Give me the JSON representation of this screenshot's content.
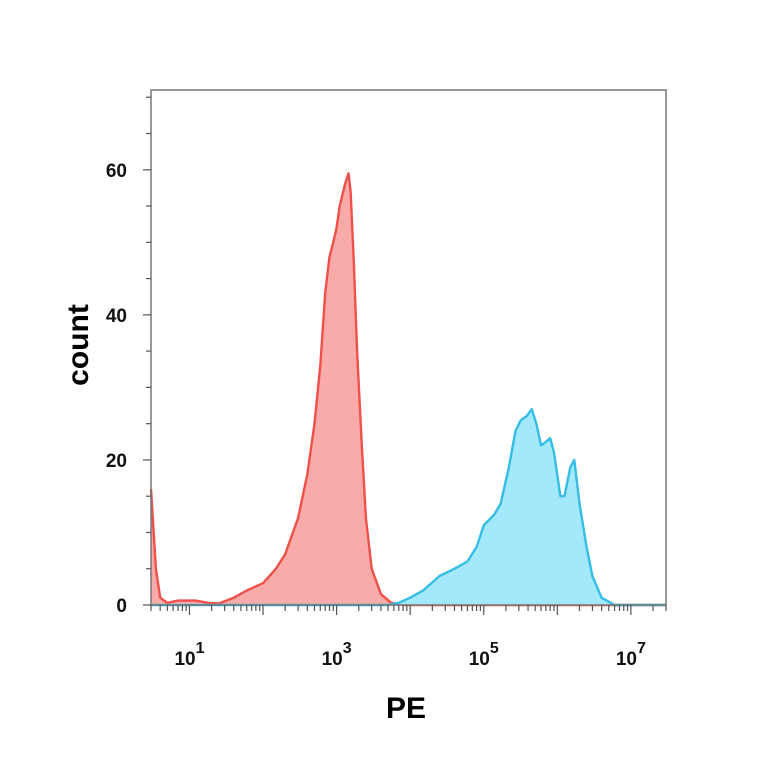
{
  "chart_data": {
    "type": "area",
    "title": "",
    "xlabel": "PE",
    "ylabel": "count",
    "x_scale": "log",
    "xlim": [
      3,
      30000000
    ],
    "ylim": [
      0,
      71
    ],
    "grid": false,
    "legend": "none",
    "x_ticks": [
      {
        "value": 10,
        "base": "10",
        "exp": "1"
      },
      {
        "value": 1000,
        "base": "10",
        "exp": "3"
      },
      {
        "value": 100000,
        "base": "10",
        "exp": "5"
      },
      {
        "value": 10000000,
        "base": "10",
        "exp": "7"
      }
    ],
    "y_ticks": [
      {
        "value": 0,
        "label": "0"
      },
      {
        "value": 20,
        "label": "20"
      },
      {
        "value": 40,
        "label": "40"
      },
      {
        "value": 60,
        "label": "60"
      }
    ],
    "series": [
      {
        "color": "#f0504a",
        "fill": "#f9a7a5",
        "points": [
          [
            3,
            16
          ],
          [
            3.5,
            5
          ],
          [
            4,
            1
          ],
          [
            5,
            0.3
          ],
          [
            7,
            0.6
          ],
          [
            12,
            0.6
          ],
          [
            18,
            0.3
          ],
          [
            25,
            0.2
          ],
          [
            40,
            1
          ],
          [
            60,
            2
          ],
          [
            100,
            3
          ],
          [
            150,
            5
          ],
          [
            200,
            7
          ],
          [
            300,
            12
          ],
          [
            400,
            18
          ],
          [
            500,
            25
          ],
          [
            600,
            33
          ],
          [
            700,
            43
          ],
          [
            800,
            48
          ],
          [
            900,
            50
          ],
          [
            1000,
            52
          ],
          [
            1100,
            55
          ],
          [
            1300,
            58
          ],
          [
            1450,
            59.5
          ],
          [
            1550,
            57
          ],
          [
            1700,
            48
          ],
          [
            1900,
            35
          ],
          [
            2200,
            22
          ],
          [
            2500,
            12
          ],
          [
            3000,
            5
          ],
          [
            4000,
            1.5
          ],
          [
            5500,
            0.3
          ],
          [
            8000,
            0
          ],
          [
            100000,
            0
          ],
          [
            30000000,
            0
          ]
        ]
      },
      {
        "color": "#35bde6",
        "fill": "#9ee7fb",
        "points": [
          [
            3,
            0
          ],
          [
            5000,
            0
          ],
          [
            7000,
            0.3
          ],
          [
            10000,
            1
          ],
          [
            15000,
            2
          ],
          [
            25000,
            4
          ],
          [
            40000,
            5
          ],
          [
            60000,
            6
          ],
          [
            80000,
            8
          ],
          [
            100000,
            11
          ],
          [
            140000,
            12.5
          ],
          [
            170000,
            14
          ],
          [
            220000,
            19
          ],
          [
            270000,
            24
          ],
          [
            320000,
            25.5
          ],
          [
            380000,
            26
          ],
          [
            450000,
            27
          ],
          [
            520000,
            25
          ],
          [
            600000,
            22
          ],
          [
            700000,
            22.5
          ],
          [
            800000,
            23
          ],
          [
            900000,
            21
          ],
          [
            1100000,
            15
          ],
          [
            1250000,
            15
          ],
          [
            1500000,
            19
          ],
          [
            1700000,
            20
          ],
          [
            2000000,
            14
          ],
          [
            2500000,
            8
          ],
          [
            3000000,
            4
          ],
          [
            4000000,
            1
          ],
          [
            6000000,
            0
          ],
          [
            30000000,
            0
          ]
        ]
      }
    ]
  }
}
